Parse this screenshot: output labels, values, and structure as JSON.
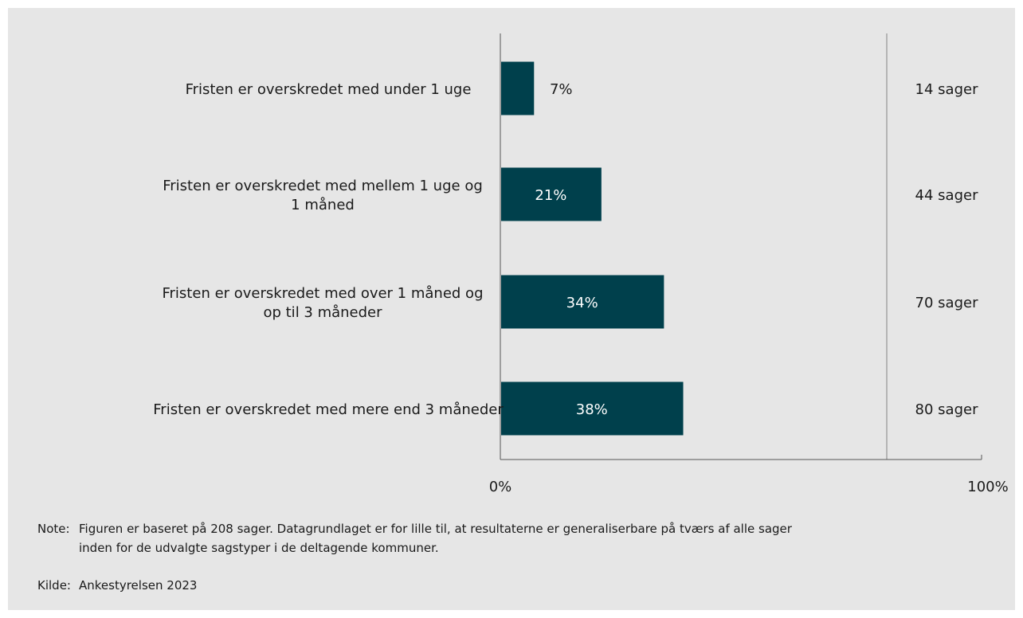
{
  "chart_data": {
    "type": "bar",
    "orientation": "horizontal",
    "categories": [
      [
        "Fristen er overskredet med under 1 uge"
      ],
      [
        "Fristen er overskredet med mellem 1 uge og",
        "1 måned"
      ],
      [
        "Fristen er overskredet med over 1 måned og",
        "op til 3 måneder"
      ],
      [
        "Fristen er overskredet med mere end 3 måneder"
      ]
    ],
    "values": [
      7,
      21,
      34,
      38
    ],
    "value_labels": [
      "7%",
      "21%",
      "34%",
      "38%"
    ],
    "case_counts": [
      "14 sager",
      "44 sager",
      "70 sager",
      "80 sager"
    ],
    "xlim": [
      0,
      100
    ],
    "x_tick_labels": [
      "0%",
      "100%"
    ],
    "grid": false,
    "colors": {
      "bar": "#00404c",
      "background": "#e6e6e6",
      "separator": "#b4b4b4",
      "axis": "#555555"
    }
  },
  "note": {
    "label": "Note:",
    "lines": [
      "Figuren er baseret på 208 sager. Datagrundlaget er for lille til, at resultaterne er generaliserbare på tværs af alle sager",
      "inden for de udvalgte sagstyper i de deltagende kommuner."
    ]
  },
  "source": {
    "label": "Kilde:",
    "text": "Ankestyrelsen 2023"
  }
}
